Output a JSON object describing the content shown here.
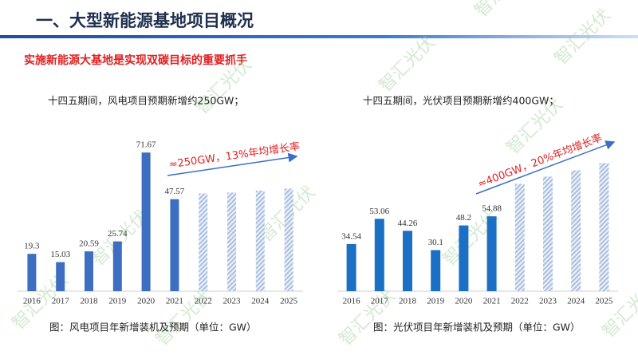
{
  "header": {
    "title": "一、大型新能源基地项目概况",
    "subtitle": "实施新能源大基地是实现双碳目标的重要抓手"
  },
  "watermark": "智汇光伏",
  "chart_data": [
    {
      "type": "bar",
      "note": "十四五期间，风电项目预期新增约250GW；",
      "caption": "图：风电项目年新增装机及预期（单位：GW）",
      "annotation": "≈250GW，13%年均增长率",
      "categories": [
        "2016",
        "2017",
        "2018",
        "2019",
        "2020",
        "2021",
        "2022",
        "2023",
        "2024",
        "2025"
      ],
      "series": [
        {
          "values": [
            19.3,
            15.03,
            20.59,
            25.74,
            71.67,
            47.57,
            null,
            null,
            null,
            null
          ],
          "color": "#3d6ec2",
          "fill": "solid",
          "data_labels": true
        },
        {
          "values": [
            null,
            null,
            null,
            null,
            null,
            null,
            50.5,
            51,
            52,
            53
          ],
          "color": "#a9bedf",
          "fill": "hatched",
          "data_labels": false
        }
      ],
      "ylim": [
        0,
        80
      ]
    },
    {
      "type": "bar",
      "note": "十四五期间，光伏项目预期新增约400GW；",
      "caption": "图：光伏项目年新增装机及预期（单位：GW）",
      "annotation": "≈400GW，20%年均增长率",
      "categories": [
        "2016",
        "2017",
        "2018",
        "2019",
        "2020",
        "2021",
        "2022",
        "2023",
        "2024",
        "2025"
      ],
      "series": [
        {
          "values": [
            34.54,
            53.06,
            44.26,
            30.1,
            48.2,
            54.88,
            null,
            null,
            null,
            null
          ],
          "color": "#1b6fc4",
          "fill": "solid",
          "data_labels": true
        },
        {
          "values": [
            null,
            null,
            null,
            null,
            null,
            null,
            78.7,
            84,
            88.6,
            93.9
          ],
          "color": "#a9bedf",
          "fill": "hatched",
          "data_labels": false
        }
      ],
      "ylim": [
        0,
        100
      ]
    }
  ]
}
